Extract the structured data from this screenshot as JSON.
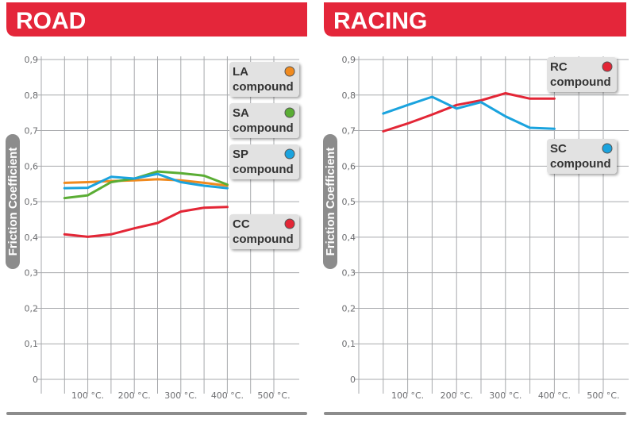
{
  "chart_data": [
    {
      "type": "line",
      "title": "ROAD",
      "ylabel": "Friction Coefficient",
      "xlabel": "",
      "y_ticks": [
        "0",
        "0,1",
        "0,2",
        "0,3",
        "0,4",
        "0,5",
        "0,6",
        "0,7",
        "0,8",
        "0,9"
      ],
      "x_ticks": [
        "100 °C.",
        "200 °C.",
        "300 °C.",
        "400 °C.",
        "500 °C."
      ],
      "x_tick_values": [
        100,
        200,
        300,
        400,
        500
      ],
      "xlim": [
        0,
        550
      ],
      "ylim": [
        0,
        0.9
      ],
      "grid": true,
      "series": [
        {
          "name": "LA compound",
          "line1": "LA",
          "line2": "compound",
          "color": "#f08a1e",
          "x": [
            50,
            100,
            150,
            200,
            250,
            300,
            350,
            400
          ],
          "y": [
            0.553,
            0.555,
            0.558,
            0.56,
            0.563,
            0.56,
            0.553,
            0.545
          ]
        },
        {
          "name": "SA compound",
          "line1": "SA",
          "line2": "compound",
          "color": "#5aad34",
          "x": [
            50,
            100,
            150,
            200,
            250,
            300,
            350,
            400
          ],
          "y": [
            0.51,
            0.518,
            0.555,
            0.565,
            0.585,
            0.58,
            0.573,
            0.548
          ]
        },
        {
          "name": "SP compound",
          "line1": "SP",
          "line2": "compound",
          "color": "#1aa3de",
          "x": [
            50,
            100,
            150,
            200,
            250,
            300,
            350,
            400
          ],
          "y": [
            0.538,
            0.539,
            0.57,
            0.565,
            0.578,
            0.555,
            0.545,
            0.538
          ]
        },
        {
          "name": "CC compound",
          "line1": "CC",
          "line2": "compound",
          "color": "#e32636",
          "x": [
            50,
            100,
            150,
            200,
            250,
            300,
            350,
            400
          ],
          "y": [
            0.408,
            0.401,
            0.408,
            0.425,
            0.44,
            0.472,
            0.483,
            0.485
          ]
        }
      ]
    },
    {
      "type": "line",
      "title": "RACING",
      "ylabel": "Friction Coefficient",
      "xlabel": "",
      "y_ticks": [
        "0",
        "0,1",
        "0,2",
        "0,3",
        "0,4",
        "0,5",
        "0,6",
        "0,7",
        "0,8",
        "0,9"
      ],
      "x_ticks": [
        "100 °C.",
        "200 °C.",
        "300 °C.",
        "400 °C.",
        "500 °C."
      ],
      "x_tick_values": [
        100,
        200,
        300,
        400,
        500
      ],
      "xlim": [
        0,
        550
      ],
      "ylim": [
        0,
        0.9
      ],
      "grid": true,
      "series": [
        {
          "name": "RC compound",
          "line1": "RC",
          "line2": "compound",
          "color": "#e32636",
          "x": [
            50,
            100,
            150,
            200,
            250,
            300,
            350,
            400
          ],
          "y": [
            0.698,
            0.72,
            0.745,
            0.772,
            0.785,
            0.805,
            0.79,
            0.79
          ]
        },
        {
          "name": "SC compound",
          "line1": "SC",
          "line2": "compound",
          "color": "#1aa3de",
          "x": [
            50,
            100,
            150,
            200,
            250,
            300,
            350,
            400
          ],
          "y": [
            0.748,
            0.772,
            0.795,
            0.762,
            0.78,
            0.74,
            0.708,
            0.705
          ]
        }
      ]
    }
  ]
}
